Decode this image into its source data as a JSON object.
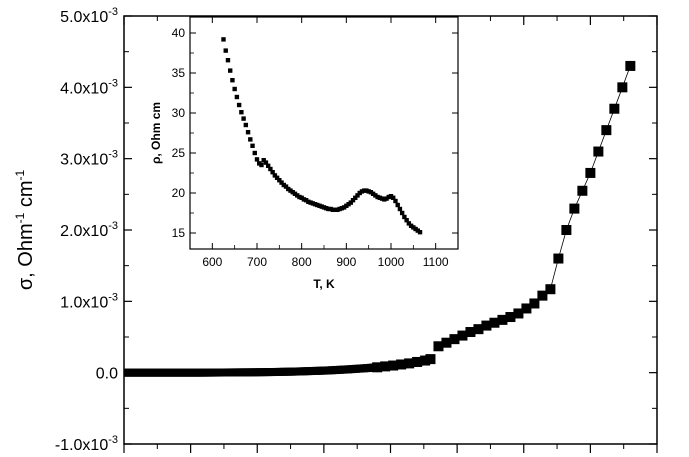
{
  "chart_data": [
    {
      "type": "scatter",
      "title": "",
      "xlabel": "",
      "ylabel": "σ, Ohm⁻¹ cm⁻¹",
      "ylabel_parts": {
        "symbol": "σ, Ohm",
        "exp1": "-1",
        "mid": " cm",
        "exp2": "-1"
      },
      "ylim": [
        -0.001,
        0.005
      ],
      "yticks": [
        {
          "value": 0.005,
          "mantissa": "5.0x10",
          "exp": "-3"
        },
        {
          "value": 0.004,
          "mantissa": "4.0x10",
          "exp": "-3"
        },
        {
          "value": 0.003,
          "mantissa": "3.0x10",
          "exp": "-3"
        },
        {
          "value": 0.002,
          "mantissa": "2.0x10",
          "exp": "-3"
        },
        {
          "value": 0.001,
          "mantissa": "1.0x10",
          "exp": "-3"
        },
        {
          "value": 0.0,
          "mantissa": "0.0",
          "exp": ""
        },
        {
          "value": -0.001,
          "mantissa": "-1.0x10",
          "exp": "-3"
        }
      ],
      "xlim": [
        0,
        1
      ],
      "x_tick_labels": "none",
      "grid": false,
      "legend": "none",
      "marker": "square",
      "connecting_line": "thin line on high-temperature branch",
      "series": [
        {
          "x": [
            0.0,
            0.02,
            0.04,
            0.06,
            0.08,
            0.1,
            0.12,
            0.14,
            0.16,
            0.18,
            0.2,
            0.22,
            0.24,
            0.26,
            0.28,
            0.3,
            0.32,
            0.34,
            0.36,
            0.38,
            0.4,
            0.42,
            0.44,
            0.46,
            0.475,
            0.49,
            0.505,
            0.52,
            0.535,
            0.55,
            0.565,
            0.575,
            0.59,
            0.605,
            0.62,
            0.635,
            0.65,
            0.665,
            0.68,
            0.695,
            0.71,
            0.725,
            0.74,
            0.755,
            0.77,
            0.785,
            0.8,
            0.815,
            0.83,
            0.845,
            0.86,
            0.875,
            0.89,
            0.905,
            0.92,
            0.935,
            0.95
          ],
          "y": [
            0.0,
            0.0,
            0.0,
            0.0,
            0.0,
            0.0,
            0.0,
            0.0,
            1e-06,
            2e-06,
            3e-06,
            4e-06,
            5e-06,
            7e-06,
            9e-06,
            1.2e-05,
            1.5e-05,
            2e-05,
            2.5e-05,
            3e-05,
            3.8e-05,
            4.6e-05,
            5.6e-05,
            6.6e-05,
            7.5e-05,
            8.8e-05,
            0.0001,
            0.000115,
            0.00013,
            0.00015,
            0.00017,
            0.00019,
            0.00037,
            0.00042,
            0.00047,
            0.00052,
            0.00057,
            0.00061,
            0.00066,
            0.0007,
            0.00074,
            0.00078,
            0.00083,
            0.0009,
            0.00097,
            0.00108,
            0.00117,
            0.0016,
            0.002,
            0.0023,
            0.00255,
            0.0028,
            0.0031,
            0.0034,
            0.0037,
            0.004,
            0.0043
          ]
        }
      ]
    },
    {
      "type": "scatter",
      "title": "",
      "xlabel": "T, K",
      "ylabel": "ρ, Ohm cm",
      "xlim": [
        550,
        1150
      ],
      "ylim": [
        13,
        42
      ],
      "xticks": [
        600,
        700,
        800,
        900,
        1000,
        1100
      ],
      "yticks": [
        15,
        20,
        25,
        30,
        35,
        40
      ],
      "grid": false,
      "legend": "none",
      "marker": "small square",
      "series": [
        {
          "x": [
            625,
            630,
            635,
            640,
            645,
            650,
            655,
            660,
            665,
            670,
            675,
            680,
            685,
            690,
            695,
            700,
            705,
            710,
            715,
            720,
            725,
            730,
            735,
            740,
            745,
            750,
            755,
            760,
            765,
            770,
            775,
            780,
            785,
            790,
            795,
            800,
            805,
            810,
            815,
            820,
            825,
            830,
            835,
            840,
            845,
            850,
            855,
            860,
            865,
            870,
            875,
            880,
            885,
            890,
            895,
            900,
            905,
            910,
            915,
            920,
            925,
            930,
            935,
            940,
            945,
            950,
            955,
            960,
            965,
            970,
            975,
            980,
            985,
            990,
            995,
            1000,
            1005,
            1010,
            1015,
            1020,
            1025,
            1030,
            1035,
            1040,
            1045,
            1050,
            1055,
            1060,
            1065
          ],
          "y": [
            39.2,
            37.8,
            36.6,
            35.3,
            34.1,
            33.0,
            32.0,
            31.0,
            30.1,
            29.3,
            28.5,
            27.6,
            26.7,
            25.9,
            25.0,
            24.2,
            23.7,
            23.5,
            24.1,
            23.8,
            23.4,
            23.0,
            22.6,
            22.2,
            21.9,
            21.6,
            21.3,
            21.0,
            20.8,
            20.5,
            20.3,
            20.1,
            19.9,
            19.7,
            19.5,
            19.4,
            19.2,
            19.1,
            18.9,
            18.8,
            18.7,
            18.6,
            18.5,
            18.4,
            18.3,
            18.2,
            18.1,
            18.0,
            18.0,
            17.9,
            17.9,
            17.9,
            18.0,
            18.1,
            18.2,
            18.4,
            18.6,
            18.8,
            19.1,
            19.4,
            19.7,
            20.0,
            20.2,
            20.3,
            20.3,
            20.2,
            20.1,
            19.9,
            19.7,
            19.5,
            19.4,
            19.3,
            19.2,
            19.3,
            19.5,
            19.6,
            19.4,
            19.0,
            18.5,
            18.0,
            17.5,
            17.0,
            16.6,
            16.2,
            15.9,
            15.7,
            15.5,
            15.3,
            15.1
          ]
        }
      ]
    }
  ]
}
